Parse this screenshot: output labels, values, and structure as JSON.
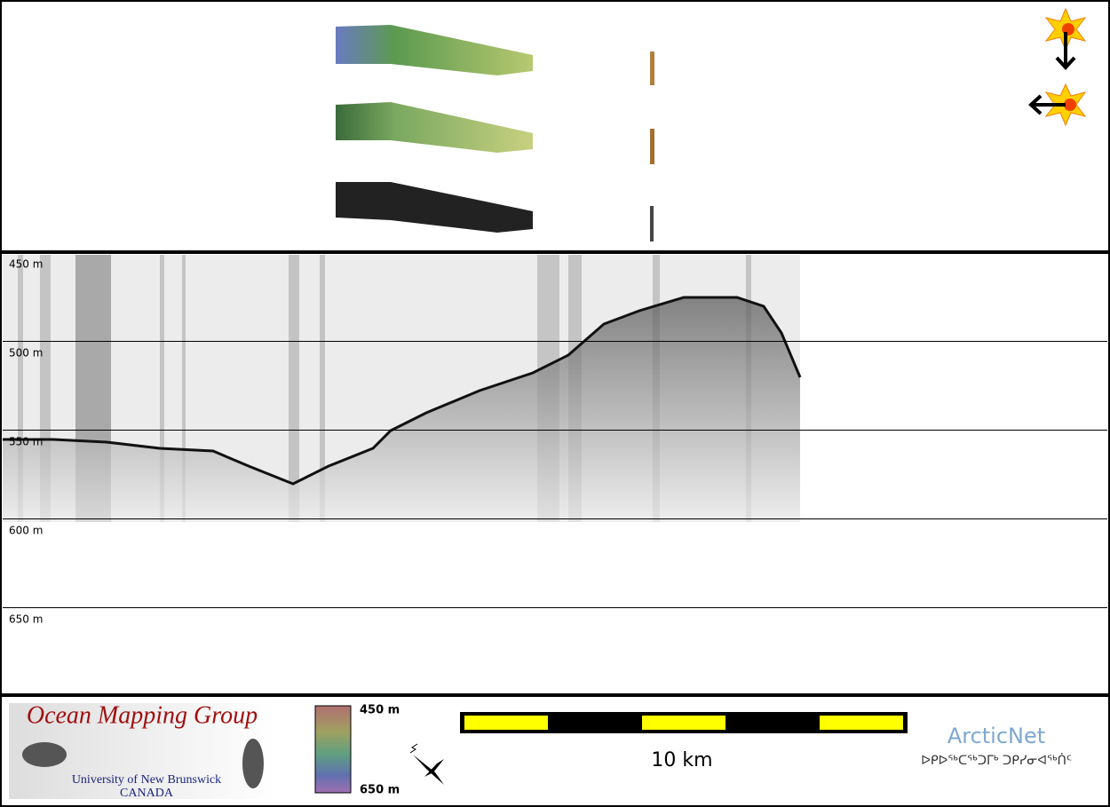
{
  "profile": {
    "depth_labels": [
      "450 m",
      "500 m",
      "550 m",
      "600 m",
      "650 m"
    ]
  },
  "footer": {
    "logo_title": "Ocean Mapping Group",
    "logo_university": "University of New Brunswick",
    "logo_country": "CANADA",
    "colorbar_top": "450 m",
    "colorbar_bottom": "650 m",
    "scale_label": "10 km",
    "partner": "ArcticNet",
    "partner_syllabics": "ᐅᑭᐅᖅᑕᖅᑐᒥᒃ ᑐᑭᓯᓂᐊᖅᑏᑦ"
  }
}
